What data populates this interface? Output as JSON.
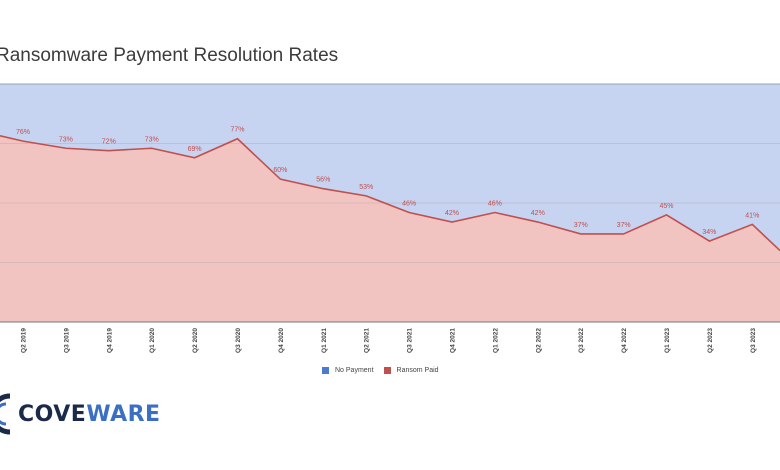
{
  "chart_data": {
    "type": "area",
    "title": "Ransomware Payment Resolution Rates",
    "categories": [
      "Q2 2019",
      "Q3 2019",
      "Q4 2019",
      "Q1 2020",
      "Q2 2020",
      "Q3 2020",
      "Q4 2020",
      "Q1 2021",
      "Q2 2021",
      "Q3 2021",
      "Q4 2021",
      "Q1 2022",
      "Q2 2022",
      "Q3 2022",
      "Q4 2022",
      "Q1 2023",
      "Q2 2023",
      "Q3 2023"
    ],
    "series": [
      {
        "name": "Ransom Paid",
        "color": "#c0504d",
        "fill": "#f2c4c1",
        "values": [
          76,
          73,
          72,
          73,
          69,
          77,
          60,
          56,
          53,
          46,
          42,
          46,
          42,
          37,
          37,
          45,
          34,
          41
        ],
        "labels": [
          "76%",
          "73%",
          "72%",
          "73%",
          "69%",
          "77%",
          "60%",
          "56%",
          "53%",
          "46%",
          "42%",
          "46%",
          "42%",
          "37%",
          "37%",
          "45%",
          "34%",
          "41%"
        ]
      },
      {
        "name": "No Payment",
        "color": "#4a7bd0",
        "fill": "#c6d3f1"
      }
    ],
    "ylim": [
      0,
      100
    ],
    "legend": [
      "No Payment",
      "Ransom Paid"
    ],
    "legend_position": "bottom-center",
    "grid": true
  },
  "brand": {
    "part1": "COVE",
    "part2": "WARE"
  }
}
